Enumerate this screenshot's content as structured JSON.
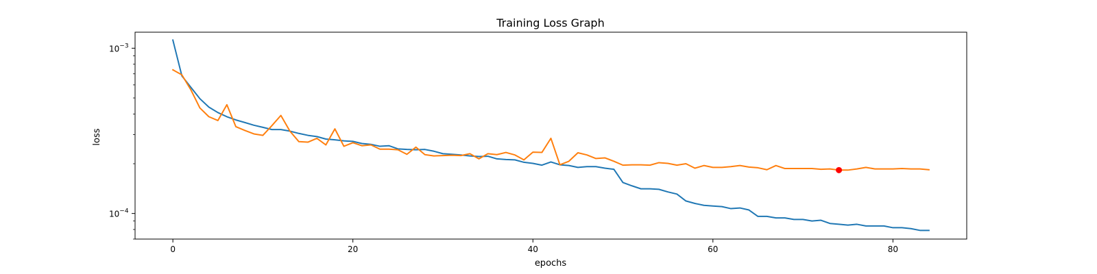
{
  "chart_data": {
    "type": "line",
    "title": "Training Loss Graph",
    "xlabel": "epochs",
    "ylabel": "loss",
    "yscale": "log",
    "xlim": [
      -4.2,
      88.2
    ],
    "ylim": [
      7e-05,
      0.00125
    ],
    "grid": false,
    "legend": "none",
    "x_ticks": [
      {
        "value": 0,
        "label": "0"
      },
      {
        "value": 20,
        "label": "20"
      },
      {
        "value": 40,
        "label": "40"
      },
      {
        "value": 60,
        "label": "60"
      },
      {
        "value": 80,
        "label": "80"
      }
    ],
    "y_major_ticks": [
      {
        "value": 0.0001,
        "base": "10",
        "exp": "−4"
      },
      {
        "value": 0.001,
        "base": "10",
        "exp": "−3"
      }
    ],
    "y_minor_ticks": [
      7e-05,
      8e-05,
      9e-05,
      0.0002,
      0.0003,
      0.0004,
      0.0005,
      0.0006,
      0.0007,
      0.0008,
      0.0009
    ],
    "x": [
      0,
      1,
      2,
      3,
      4,
      5,
      6,
      7,
      8,
      9,
      10,
      11,
      12,
      13,
      14,
      15,
      16,
      17,
      18,
      19,
      20,
      21,
      22,
      23,
      24,
      25,
      26,
      27,
      28,
      29,
      30,
      31,
      32,
      33,
      34,
      35,
      36,
      37,
      38,
      39,
      40,
      41,
      42,
      43,
      44,
      45,
      46,
      47,
      48,
      49,
      50,
      51,
      52,
      53,
      54,
      55,
      56,
      57,
      58,
      59,
      60,
      61,
      62,
      63,
      64,
      65,
      66,
      67,
      68,
      69,
      70,
      71,
      72,
      73,
      74,
      75,
      76,
      77,
      78,
      79,
      80,
      81,
      82,
      83,
      84
    ],
    "series": [
      {
        "color": "#1f77b4",
        "values": [
          0.00112,
          0.00068,
          0.00058,
          0.000495,
          0.00044,
          0.000408,
          0.000385,
          0.000368,
          0.000355,
          0.000342,
          0.000332,
          0.000322,
          0.000322,
          0.000315,
          0.000305,
          0.000297,
          0.000292,
          0.000282,
          0.000279,
          0.000275,
          0.000273,
          0.000265,
          0.000262,
          0.000255,
          0.000257,
          0.000246,
          0.000244,
          0.000243,
          0.000244,
          0.000238,
          0.00023,
          0.000228,
          0.000226,
          0.000223,
          0.000221,
          0.000222,
          0.000214,
          0.000212,
          0.000211,
          0.000204,
          0.000201,
          0.000196,
          0.000205,
          0.000197,
          0.000195,
          0.00019,
          0.000192,
          0.000192,
          0.000188,
          0.000185,
          0.000154,
          0.000147,
          0.000141,
          0.000141,
          0.00014,
          0.000135,
          0.000131,
          0.000119,
          0.000115,
          0.000112,
          0.000111,
          0.00011,
          0.000107,
          0.000108,
          0.000105,
          9.6e-05,
          9.6e-05,
          9.4e-05,
          9.4e-05,
          9.2e-05,
          9.2e-05,
          9e-05,
          9.1e-05,
          8.7e-05,
          8.6e-05,
          8.5e-05,
          8.6e-05,
          8.4e-05,
          8.4e-05,
          8.4e-05,
          8.2e-05,
          8.2e-05,
          8.1e-05,
          7.9e-05,
          7.9e-05
        ]
      },
      {
        "color": "#ff7f0e",
        "values": [
          0.00074,
          0.00069,
          0.00056,
          0.000435,
          0.000385,
          0.000365,
          0.000455,
          0.000335,
          0.000318,
          0.000303,
          0.000297,
          0.00034,
          0.000392,
          0.000315,
          0.000272,
          0.00027,
          0.000285,
          0.00026,
          0.000325,
          0.000255,
          0.000268,
          0.000257,
          0.00026,
          0.000245,
          0.000245,
          0.000243,
          0.000228,
          0.000252,
          0.000227,
          0.000223,
          0.000224,
          0.000225,
          0.000224,
          0.00023,
          0.000214,
          0.00023,
          0.000227,
          0.000234,
          0.000226,
          0.000211,
          0.000235,
          0.000234,
          0.000285,
          0.000197,
          0.000207,
          0.000233,
          0.000226,
          0.000215,
          0.000217,
          0.000207,
          0.000196,
          0.000197,
          0.000197,
          0.000196,
          0.000203,
          0.000201,
          0.000196,
          0.0002,
          0.000188,
          0.000195,
          0.00019,
          0.00019,
          0.000192,
          0.000195,
          0.000191,
          0.000189,
          0.000184,
          0.000195,
          0.000187,
          0.000187,
          0.000187,
          0.000187,
          0.000185,
          0.000186,
          0.000183,
          0.000183,
          0.000186,
          0.00019,
          0.000186,
          0.000186,
          0.000186,
          0.000187,
          0.000186,
          0.000186,
          0.000184
        ]
      }
    ],
    "markers": [
      {
        "x": 74,
        "y": 0.000183,
        "color": "#ff0000"
      }
    ]
  }
}
